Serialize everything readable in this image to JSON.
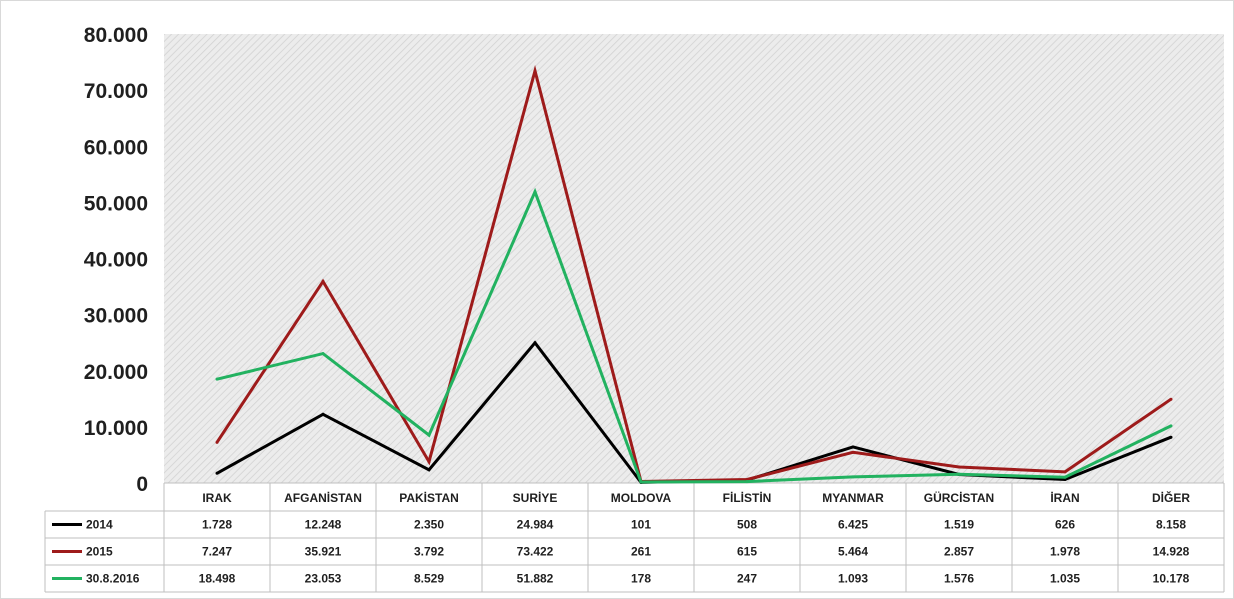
{
  "chart_data": {
    "type": "line",
    "categories": [
      "IRAK",
      "AFGANİSTAN",
      "PAKİSTAN",
      "SURİYE",
      "MOLDOVA",
      "FİLİSTİN",
      "MYANMAR",
      "GÜRCİSTAN",
      "İRAN",
      "DİĞER"
    ],
    "series": [
      {
        "name": "2014",
        "color": "#000000",
        "values": [
          1728,
          12248,
          2350,
          24984,
          101,
          508,
          6425,
          1519,
          626,
          8158
        ],
        "labels": [
          "1.728",
          "12.248",
          "2.350",
          "24.984",
          "101",
          "508",
          "6.425",
          "1.519",
          "626",
          "8.158"
        ]
      },
      {
        "name": "2015",
        "color": "#9e1b1b",
        "values": [
          7247,
          35921,
          3792,
          73422,
          261,
          615,
          5464,
          2857,
          1978,
          14928
        ],
        "labels": [
          "7.247",
          "35.921",
          "3.792",
          "73.422",
          "261",
          "615",
          "5.464",
          "2.857",
          "1.978",
          "14.928"
        ]
      },
      {
        "name": "30.8.2016",
        "color": "#22b260",
        "values": [
          18498,
          23053,
          8529,
          51882,
          178,
          247,
          1093,
          1576,
          1035,
          10178
        ],
        "labels": [
          "18.498",
          "23.053",
          "8.529",
          "51.882",
          "178",
          "247",
          "1.093",
          "1.576",
          "1.035",
          "10.178"
        ]
      }
    ],
    "ylim": [
      0,
      80000
    ],
    "yticks": [
      0,
      10000,
      20000,
      30000,
      40000,
      50000,
      60000,
      70000,
      80000
    ],
    "ytick_labels": [
      "0",
      "10.000",
      "20.000",
      "30.000",
      "40.000",
      "50.000",
      "60.000",
      "70.000",
      "80.000"
    ],
    "grid": false,
    "legend": "data-table-below",
    "plot_background": "hatched-gray"
  }
}
